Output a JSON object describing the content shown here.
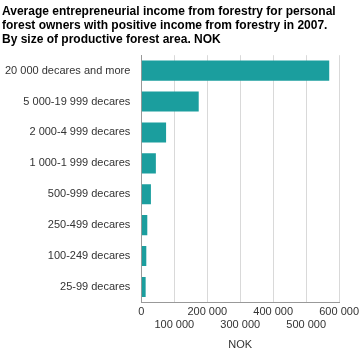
{
  "chart_data": {
    "type": "bar",
    "orientation": "horizontal",
    "title": [
      "Average entrepreneurial income from forestry for personal",
      "forest owners with positive income from forestry in 2007.",
      "By size of productive forest area. NOK"
    ],
    "x_label": "NOK",
    "categories": [
      "20 000 decares and more",
      "5 000-19 999 decares",
      "2 000-4 999 decares",
      "1 000-1 999 decares",
      "500-999 decares",
      "250-499 decares",
      "100-249 decares",
      "25-99 decares"
    ],
    "values": [
      570000,
      174000,
      75000,
      44000,
      29000,
      18000,
      15000,
      13000
    ],
    "color": "#1b9e9e",
    "xlim": [
      0,
      600000
    ],
    "xticks": [
      0,
      {
        "value": 100000,
        "label": "100 000"
      },
      {
        "value": 200000,
        "label": "200 000"
      },
      {
        "value": 300000,
        "label": "300 000"
      },
      {
        "value": 400000,
        "label": "400 000"
      },
      {
        "value": 500000,
        "label": "500 000"
      },
      {
        "value": 600000,
        "label": "600 000"
      }
    ],
    "grid": true
  }
}
